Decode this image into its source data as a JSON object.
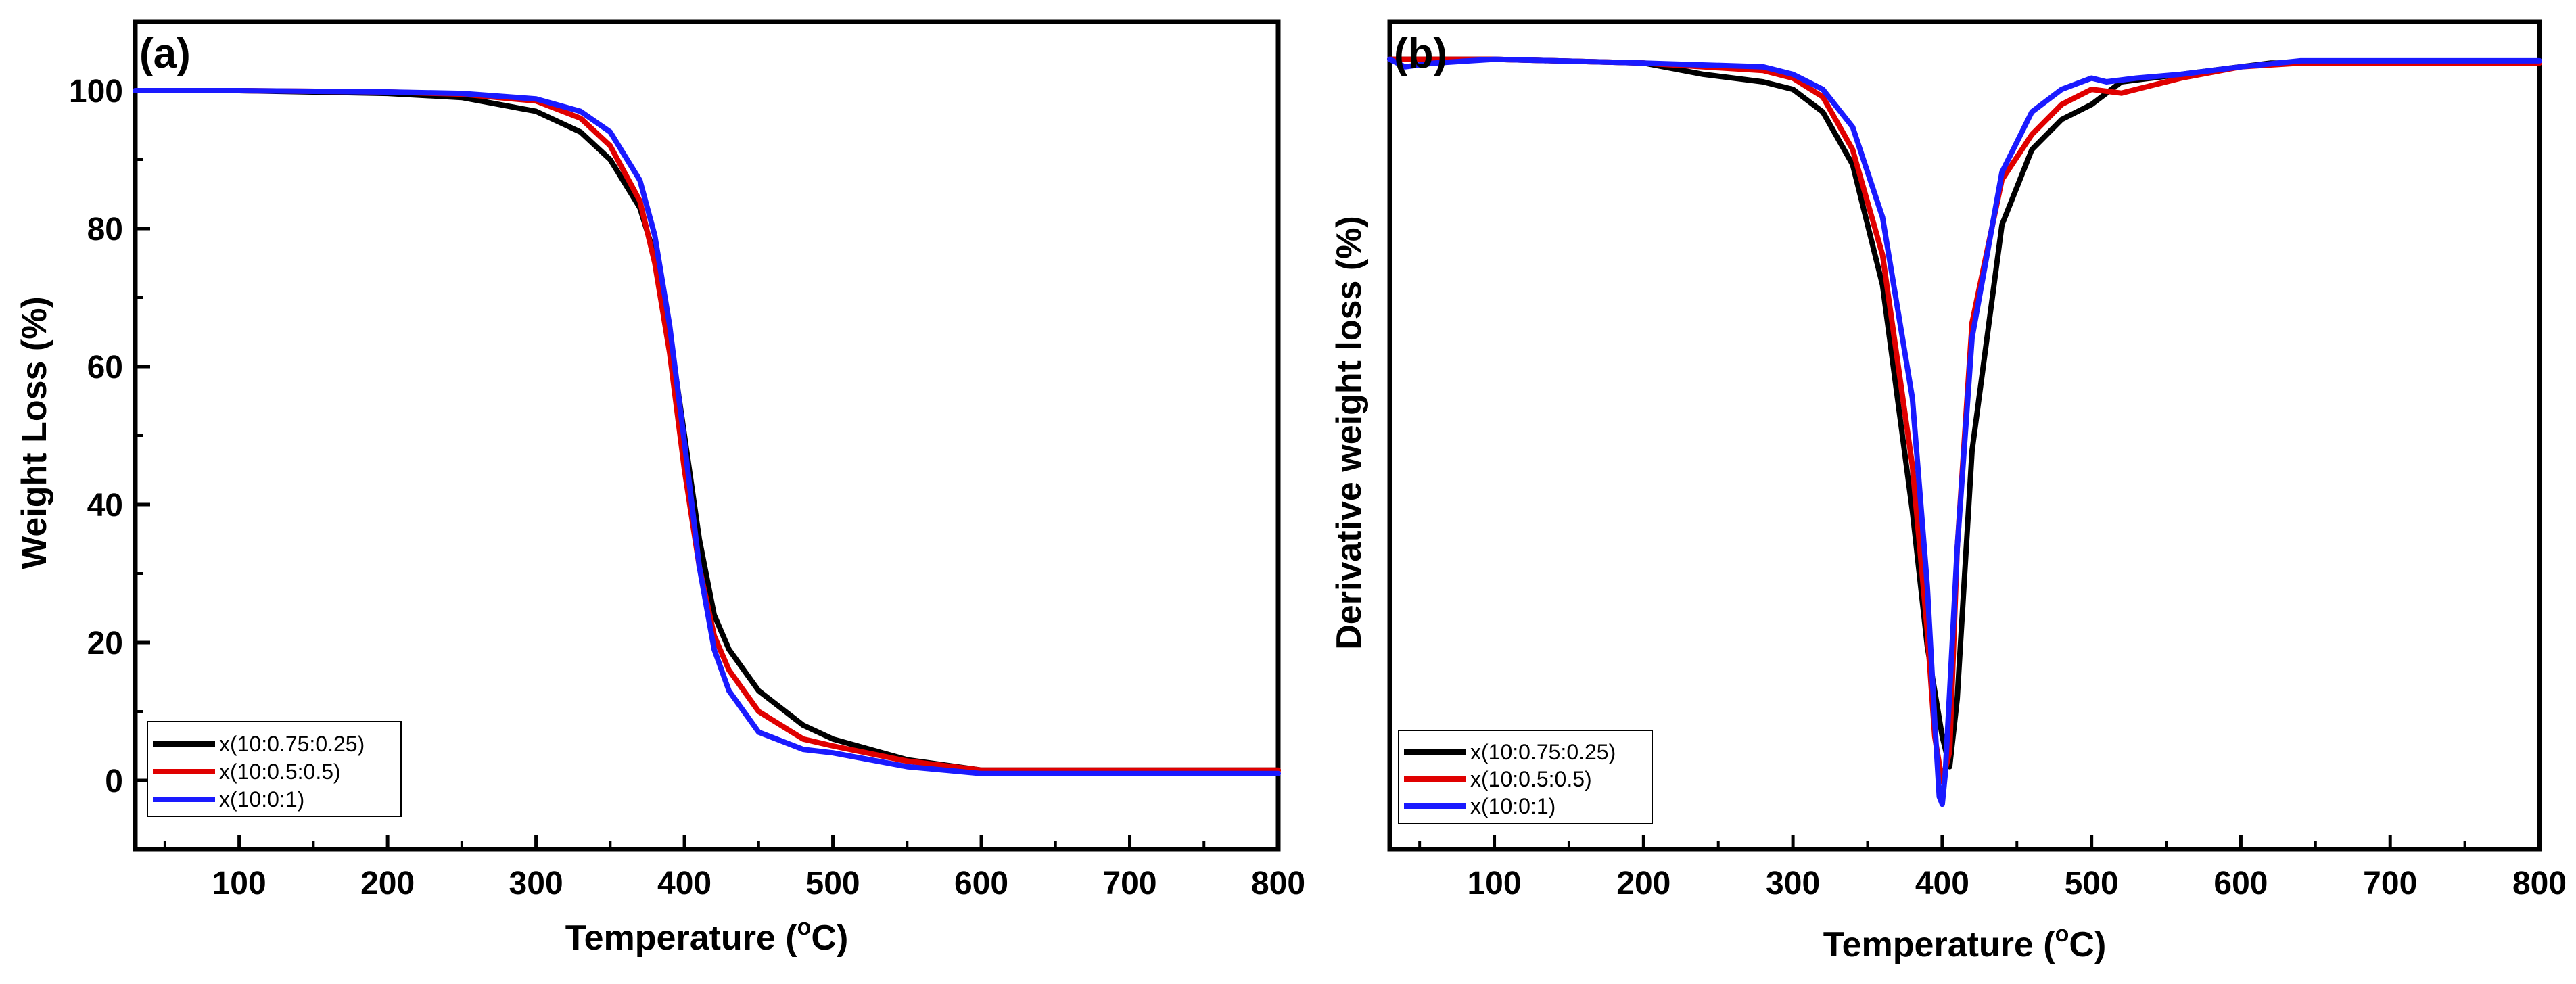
{
  "figure": {
    "series_colors": {
      "x(10:0.75:0.25)": "#000000",
      "x(10:0.5:0.5)": "#e00000",
      "x(10:0:1)": "#1a1aff"
    }
  },
  "chart_data": [
    {
      "type": "line",
      "panel_label": "(a)",
      "title": "",
      "xlabel": "Temperature (°C)",
      "xlabel_main": "Temperature (",
      "xlabel_sup": "o",
      "xlabel_end": "C)",
      "ylabel": "Weight Loss (%)",
      "xlim": [
        30,
        800
      ],
      "ylim": [
        -10,
        110
      ],
      "xticks": [
        100,
        200,
        300,
        400,
        500,
        600,
        700,
        800
      ],
      "yticks": [
        0,
        20,
        40,
        60,
        80,
        100
      ],
      "grid": false,
      "legend_position": "bottom-left",
      "series": [
        {
          "name": "x(10:0.75:0.25)",
          "color": "#000000",
          "x": [
            30,
            100,
            200,
            250,
            300,
            330,
            350,
            370,
            380,
            390,
            400,
            410,
            420,
            430,
            450,
            480,
            500,
            550,
            600,
            800
          ],
          "y": [
            100,
            100,
            99.6,
            99,
            97,
            94,
            90,
            83,
            76,
            65,
            50,
            35,
            24,
            19,
            13,
            8,
            6,
            3,
            1.5,
            1.5
          ]
        },
        {
          "name": "x(10:0.5:0.5)",
          "color": "#e00000",
          "x": [
            30,
            100,
            200,
            250,
            300,
            330,
            350,
            370,
            380,
            390,
            400,
            410,
            420,
            430,
            450,
            480,
            500,
            550,
            600,
            800
          ],
          "y": [
            100,
            100,
            99.8,
            99.5,
            98.5,
            96,
            92,
            84,
            75,
            62,
            45,
            31,
            21,
            16,
            10,
            6,
            5,
            2.8,
            1.5,
            1.5
          ]
        },
        {
          "name": "x(10:0:1)",
          "color": "#1a1aff",
          "x": [
            30,
            100,
            200,
            250,
            300,
            330,
            350,
            370,
            380,
            390,
            400,
            410,
            420,
            430,
            450,
            480,
            500,
            550,
            600,
            800
          ],
          "y": [
            100,
            100,
            99.8,
            99.6,
            98.8,
            97,
            94,
            87,
            79,
            66,
            49,
            31,
            19,
            13,
            7,
            4.5,
            4,
            2,
            1,
            1
          ]
        }
      ]
    },
    {
      "type": "line",
      "panel_label": "(b)",
      "title": "",
      "xlabel": "Temperature (°C)",
      "xlabel_main": "Temperature (",
      "xlabel_sup": "o",
      "xlabel_end": "C)",
      "ylabel": "Derivative weight loss (%)",
      "xlim": [
        30,
        800
      ],
      "ylim": [
        -5,
        105
      ],
      "xticks": [
        100,
        200,
        300,
        400,
        500,
        600,
        700,
        800
      ],
      "yticks": [],
      "grid": false,
      "legend_position": "bottom-left",
      "series": [
        {
          "name": "x(10:0.75:0.25)",
          "color": "#000000",
          "x": [
            30,
            100,
            200,
            240,
            280,
            300,
            320,
            340,
            360,
            380,
            390,
            400,
            405,
            410,
            420,
            440,
            460,
            480,
            500,
            520,
            540,
            580,
            620,
            800
          ],
          "y": [
            100,
            100,
            99.5,
            98,
            97,
            96,
            93,
            86,
            70,
            40,
            22,
            10,
            6,
            15,
            48,
            78,
            88,
            92,
            94,
            97,
            97.5,
            98.5,
            99.5,
            99.5
          ]
        },
        {
          "name": "x(10:0.5:0.5)",
          "color": "#e00000",
          "x": [
            30,
            100,
            200,
            240,
            280,
            300,
            320,
            340,
            360,
            380,
            390,
            395,
            400,
            405,
            410,
            420,
            440,
            460,
            480,
            500,
            520,
            530,
            560,
            600,
            640,
            800
          ],
          "y": [
            100,
            100,
            99.5,
            99,
            98.5,
            97.5,
            95,
            88,
            74,
            46,
            24,
            10,
            4,
            8,
            35,
            65,
            84,
            90,
            94,
            96,
            95.5,
            96,
            97.5,
            99,
            99.5,
            99.5
          ]
        },
        {
          "name": "x(10:0:1)",
          "color": "#1a1aff",
          "x": [
            30,
            40,
            60,
            100,
            200,
            280,
            300,
            320,
            340,
            360,
            380,
            390,
            395,
            398,
            400,
            402,
            405,
            410,
            420,
            440,
            460,
            480,
            500,
            510,
            530,
            560,
            600,
            640,
            800
          ],
          "y": [
            100,
            99,
            99.5,
            100,
            99.5,
            99,
            98,
            96,
            91,
            79,
            55,
            30,
            12,
            2,
            1,
            5,
            16,
            35,
            63,
            85,
            93,
            96,
            97.5,
            97,
            97.5,
            98,
            99,
            99.8,
            99.8
          ]
        }
      ]
    }
  ]
}
